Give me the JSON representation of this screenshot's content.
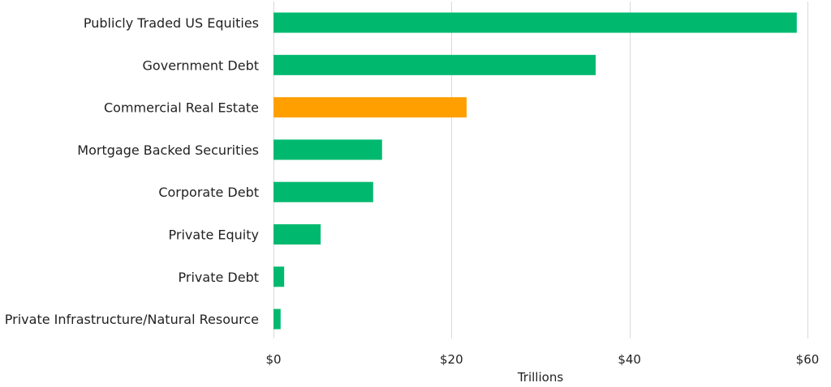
{
  "chart_data": {
    "type": "bar",
    "orientation": "horizontal",
    "categories": [
      "Publicly Traded US Equities",
      "Government Debt",
      "Commercial Real Estate",
      "Mortgage Backed Securities",
      "Corporate Debt",
      "Private Equity",
      "Private Debt",
      "Private Infrastructure/Natural Resource"
    ],
    "values": [
      58.8,
      36.2,
      21.7,
      12.2,
      11.2,
      5.3,
      1.2,
      0.8
    ],
    "bar_colors": [
      "#00b96f",
      "#00b96f",
      "#ff9f00",
      "#00b96f",
      "#00b96f",
      "#00b96f",
      "#00b96f",
      "#00b96f"
    ],
    "xlim": [
      0,
      60
    ],
    "xticks": [
      0,
      20,
      40,
      60
    ],
    "xtick_labels": [
      "$0",
      "$20",
      "$40",
      "$60"
    ],
    "xlabel": "Trillions",
    "grid": "vertical"
  }
}
